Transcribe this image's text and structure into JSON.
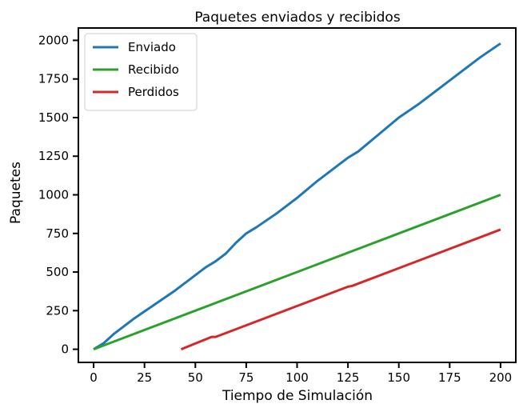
{
  "chart_data": {
    "type": "line",
    "title": "Paquetes enviados y recibidos",
    "xlabel": "Tiempo de Simulación",
    "ylabel": "Paquetes",
    "xlim": [
      -7.5,
      207.5
    ],
    "ylim": [
      -85,
      2080
    ],
    "xticks": [
      0,
      25,
      50,
      75,
      100,
      125,
      150,
      175,
      200
    ],
    "yticks": [
      0,
      250,
      500,
      750,
      1000,
      1250,
      1500,
      1750,
      2000
    ],
    "grid": false,
    "legend_position": "top-left",
    "series": [
      {
        "name": "Enviado",
        "color": "#1f77b4",
        "x": [
          0,
          5,
          10,
          20,
          25,
          30,
          40,
          50,
          55,
          60,
          65,
          70,
          75,
          80,
          90,
          100,
          110,
          120,
          125,
          130,
          140,
          150,
          160,
          170,
          180,
          190,
          200
        ],
        "y": [
          0,
          40,
          100,
          200,
          245,
          290,
          380,
          480,
          530,
          570,
          620,
          690,
          750,
          790,
          880,
          980,
          1090,
          1190,
          1240,
          1280,
          1390,
          1500,
          1590,
          1690,
          1790,
          1890,
          1980
        ]
      },
      {
        "name": "Recibido",
        "color": "#2ca02c",
        "x": [
          0,
          200
        ],
        "y": [
          0,
          1000
        ]
      },
      {
        "name": "Perdidos",
        "color": "#d62728",
        "x": [
          43,
          58,
          60,
          100,
          125,
          127,
          200
        ],
        "y": [
          0,
          80,
          80,
          280,
          405,
          410,
          775
        ]
      }
    ]
  }
}
